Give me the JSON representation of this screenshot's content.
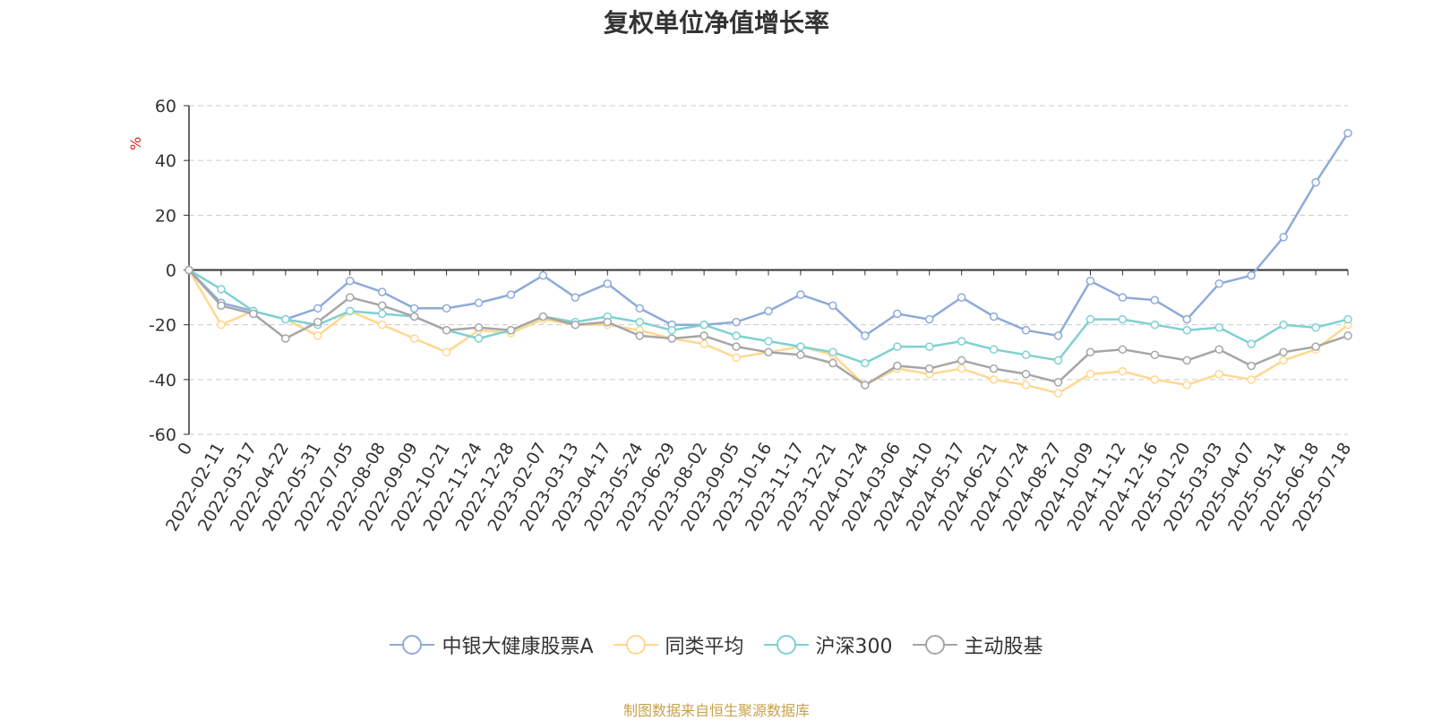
{
  "chart_data": {
    "type": "line",
    "title": "复权单位净值增长率",
    "ylabel": "%",
    "ylim": [
      -60,
      60
    ],
    "yticks": [
      60,
      40,
      20,
      0,
      -20,
      -40,
      -60
    ],
    "x_categories": [
      "0",
      "2022-02-11",
      "2022-03-17",
      "2022-04-22",
      "2022-05-31",
      "2022-07-05",
      "2022-08-08",
      "2022-09-09",
      "2022-10-21",
      "2022-11-24",
      "2022-12-28",
      "2023-02-07",
      "2023-03-13",
      "2023-04-17",
      "2023-05-24",
      "2023-06-29",
      "2023-08-02",
      "2023-09-05",
      "2023-10-16",
      "2023-11-17",
      "2023-12-21",
      "2024-01-24",
      "2024-03-06",
      "2024-04-10",
      "2024-05-17",
      "2024-06-21",
      "2024-07-24",
      "2024-08-27",
      "2024-10-09",
      "2024-11-12",
      "2024-12-16",
      "2025-01-20",
      "2025-03-03",
      "2025-04-07",
      "2025-05-14",
      "2025-06-18",
      "2025-07-18"
    ],
    "grid": "horizontal dashed",
    "legend_position": "bottom",
    "series": [
      {
        "name": "中银大健康股票A",
        "color": "#8eaadb",
        "values": [
          0,
          -12,
          -15,
          -18,
          -14,
          -4,
          -8,
          -14,
          -14,
          -12,
          -9,
          -2,
          -10,
          -5,
          -14,
          -20,
          -20,
          -19,
          -15,
          -9,
          -13,
          -24,
          -16,
          -18,
          -10,
          -17,
          -22,
          -24,
          -4,
          -10,
          -11,
          -18,
          -5,
          -2,
          12,
          32,
          50
        ]
      },
      {
        "name": "同类平均",
        "color": "#ffd88f",
        "values": [
          0,
          -20,
          -15,
          -18,
          -24,
          -15,
          -20,
          -25,
          -30,
          -22,
          -23,
          -18,
          -20,
          -20,
          -22,
          -25,
          -27,
          -32,
          -30,
          -28,
          -31,
          -42,
          -36,
          -38,
          -36,
          -40,
          -42,
          -45,
          -38,
          -37,
          -40,
          -42,
          -38,
          -40,
          -33,
          -29,
          -20
        ]
      },
      {
        "name": "沪深300",
        "color": "#7fd1d1",
        "values": [
          0,
          -7,
          -15,
          -18,
          -20,
          -15,
          -16,
          -17,
          -22,
          -25,
          -22,
          -17,
          -19,
          -17,
          -19,
          -22,
          -20,
          -24,
          -26,
          -28,
          -30,
          -34,
          -28,
          -28,
          -26,
          -29,
          -31,
          -33,
          -18,
          -18,
          -20,
          -22,
          -21,
          -27,
          -20,
          -21,
          -18
        ]
      },
      {
        "name": "主动股基",
        "color": "#a6a6a6",
        "values": [
          0,
          -13,
          -16,
          -25,
          -19,
          -10,
          -13,
          -17,
          -22,
          -21,
          -22,
          -17,
          -20,
          -19,
          -24,
          -25,
          -24,
          -28,
          -30,
          -31,
          -34,
          -42,
          -35,
          -36,
          -33,
          -36,
          -38,
          -41,
          -30,
          -29,
          -31,
          -33,
          -29,
          -35,
          -30,
          -28,
          -24
        ]
      }
    ]
  },
  "source_note": "制图数据来自恒生聚源数据库"
}
